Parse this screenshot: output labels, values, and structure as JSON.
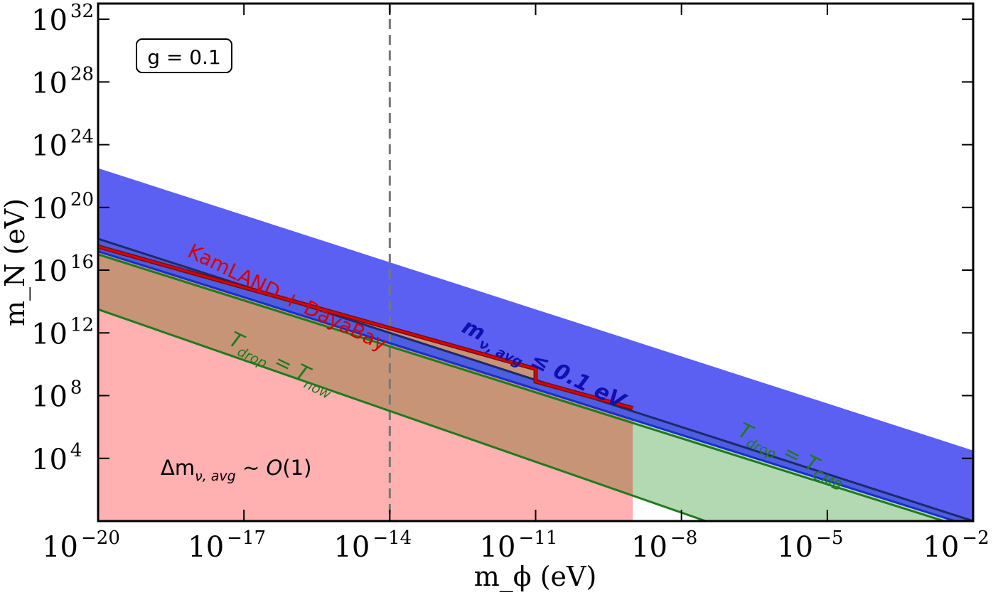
{
  "chart_data": {
    "type": "area",
    "xlabel": "m_ϕ (eV)",
    "ylabel": "m_N (eV)",
    "xscale": "log",
    "yscale": "log",
    "xlim_exp": [
      -20,
      -2
    ],
    "ylim_exp": [
      0,
      33
    ],
    "x_ticks_exp": [
      -20,
      -17,
      -14,
      -11,
      -8,
      -5,
      -2
    ],
    "y_ticks_exp": [
      4,
      8,
      12,
      16,
      20,
      24,
      28,
      32
    ],
    "tick_base": "10",
    "legend_box": "g = 0.1",
    "vertical_dashed_line_exp": -14,
    "series": [
      {
        "name": "m_ν,avg ≤ 0.1 eV",
        "color": "#0a1faa",
        "fill": "#5a5ff0",
        "points_exp": [
          [
            -20,
            18.0
          ],
          [
            -2,
            0.0
          ]
        ]
      },
      {
        "name": "KamLAND + DayaBay",
        "color": "#d50000",
        "points_exp": [
          [
            -20,
            17.5
          ],
          [
            -11,
            9.7
          ],
          [
            -11,
            8.9
          ],
          [
            -9,
            7.2
          ]
        ]
      },
      {
        "name": "T_drop = T_now",
        "color": "#1e7a1e",
        "points_exp": [
          [
            -20,
            13.5
          ],
          [
            -7.5,
            0.0
          ]
        ]
      },
      {
        "name": "T_drop = T_CMB",
        "color": "#1e7a1e",
        "points_exp": [
          [
            -20,
            17.2
          ],
          [
            -2,
            0.0
          ]
        ]
      }
    ],
    "regions": [
      {
        "name": "Δm_ν,avg ~ O(1)",
        "color": "#ffb0b0"
      }
    ],
    "annotations": {
      "blue": [
        "m",
        "ν, avg",
        " ≤ 0.1 eV"
      ],
      "red": "KamLAND + DayaBay",
      "green_now": [
        "T",
        "drop",
        " = T",
        "now"
      ],
      "green_cmb": [
        "T",
        "drop",
        " = T",
        "CMB"
      ],
      "region": [
        "Δm",
        "ν, avg",
        " ~ ",
        "O",
        "(1)"
      ]
    }
  }
}
